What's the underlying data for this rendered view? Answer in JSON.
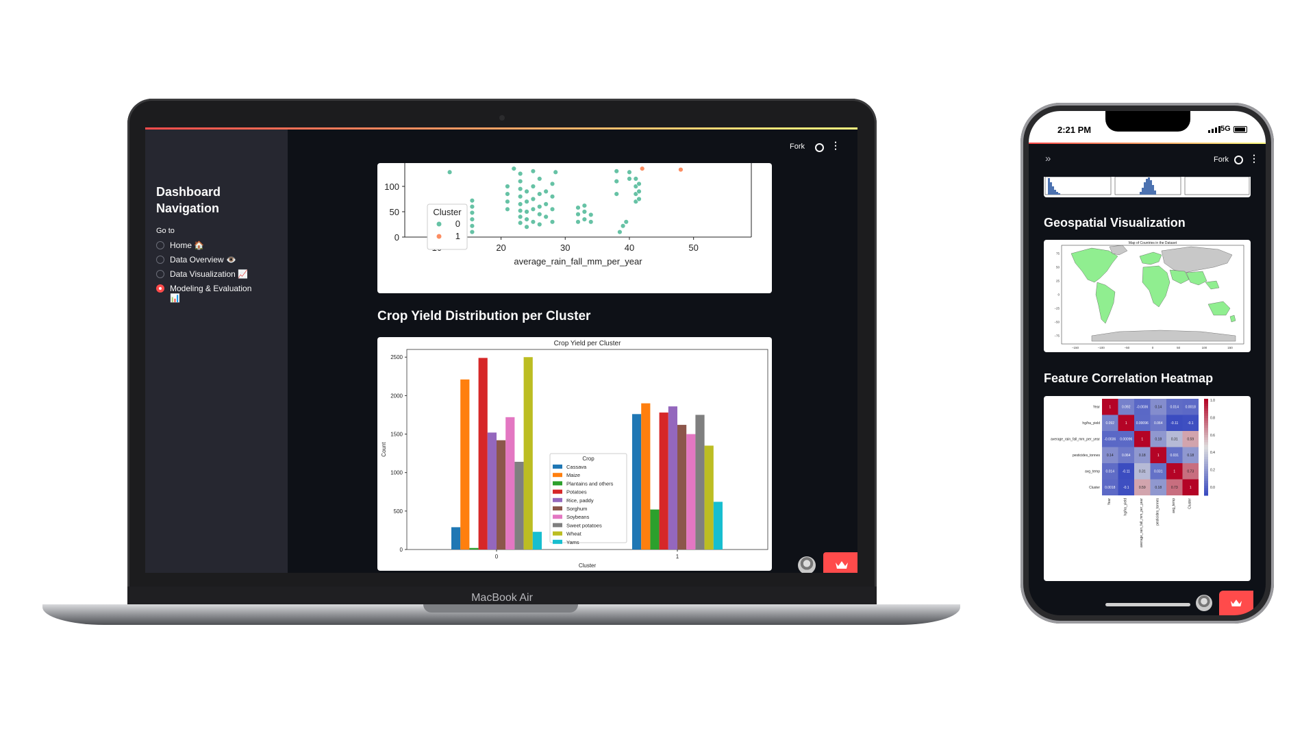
{
  "laptop": {
    "device_label": "MacBook Air",
    "header": {
      "fork_label": "Fork",
      "github_icon": "github-icon",
      "menu_icon": "kebab-menu-icon"
    },
    "sidebar": {
      "title": "Dashboard Navigation",
      "goto_label": "Go to",
      "items": [
        {
          "label": "Home 🏠",
          "selected": false
        },
        {
          "label": "Data Overview 👁️",
          "selected": false
        },
        {
          "label": "Data Visualization 📈",
          "selected": false
        },
        {
          "label": "Modeling & Evaluation 📊",
          "selected": true
        }
      ]
    },
    "sections": {
      "bar_section_title": "Crop Yield Distribution per Cluster"
    }
  },
  "phone": {
    "time": "2:21 PM",
    "signal": "5G",
    "header": {
      "expand_icon": "double-chevron-right-icon",
      "fork_label": "Fork"
    },
    "sections": {
      "geo_title": "Geospatial Visualization",
      "heatmap_title": "Feature Correlation Heatmap"
    },
    "map_title": "Map of Countries in the Dataset",
    "map_lon_ticks": [
      "−150",
      "−100",
      "−50",
      "0",
      "50",
      "100",
      "150"
    ],
    "map_lat_ticks": [
      "75",
      "50",
      "25",
      "0",
      "−25",
      "−50",
      "−75"
    ]
  },
  "colors": {
    "accent": "#ff4b4b",
    "bg_dark": "#0e1117",
    "sidebar": "#262730"
  },
  "chart_data": [
    {
      "type": "scatter",
      "xlabel": "average_rain_fall_mm_per_year",
      "ylabel": "",
      "x_ticks": [
        10,
        20,
        30,
        40,
        50
      ],
      "y_ticks": [
        0,
        50,
        100
      ],
      "xlim": [
        5,
        59
      ],
      "legend_title": "Cluster",
      "legend_position": "lower-left",
      "series": [
        {
          "name": "0",
          "color": "#66c2a5",
          "points": [
            [
              12,
              128
            ],
            [
              15.5,
              10
            ],
            [
              15.5,
              22
            ],
            [
              15.5,
              35
            ],
            [
              15.5,
              48
            ],
            [
              15.5,
              60
            ],
            [
              15.5,
              72
            ],
            [
              21,
              55
            ],
            [
              21,
              70
            ],
            [
              21,
              85
            ],
            [
              21,
              100
            ],
            [
              22,
              135
            ],
            [
              23,
              28
            ],
            [
              23,
              40
            ],
            [
              23,
              52
            ],
            [
              23,
              65
            ],
            [
              23,
              80
            ],
            [
              23,
              95
            ],
            [
              23,
              110
            ],
            [
              23,
              125
            ],
            [
              24,
              20
            ],
            [
              24,
              35
            ],
            [
              24,
              50
            ],
            [
              24,
              70
            ],
            [
              24,
              90
            ],
            [
              25,
              30
            ],
            [
              25,
              55
            ],
            [
              25,
              75
            ],
            [
              25,
              100
            ],
            [
              25,
              130
            ],
            [
              26,
              25
            ],
            [
              26,
              45
            ],
            [
              26,
              60
            ],
            [
              26,
              85
            ],
            [
              26,
              115
            ],
            [
              27,
              40
            ],
            [
              27,
              65
            ],
            [
              27,
              90
            ],
            [
              28,
              30
            ],
            [
              28,
              55
            ],
            [
              28,
              80
            ],
            [
              28,
              105
            ],
            [
              28.5,
              128
            ],
            [
              32,
              30
            ],
            [
              32,
              45
            ],
            [
              32,
              58
            ],
            [
              33,
              35
            ],
            [
              33,
              50
            ],
            [
              33,
              62
            ],
            [
              34,
              30
            ],
            [
              34,
              44
            ],
            [
              38,
              85
            ],
            [
              38,
              110
            ],
            [
              38,
              130
            ],
            [
              38.5,
              10
            ],
            [
              39,
              22
            ],
            [
              39.5,
              30
            ],
            [
              40,
              115
            ],
            [
              40,
              128
            ],
            [
              41,
              70
            ],
            [
              41,
              85
            ],
            [
              41,
              100
            ],
            [
              41,
              115
            ],
            [
              41.5,
              75
            ],
            [
              41.5,
              90
            ],
            [
              41.5,
              105
            ]
          ]
        },
        {
          "name": "1",
          "color": "#fc8d62",
          "points": [
            [
              42,
              135
            ],
            [
              48,
              133
            ]
          ]
        }
      ]
    },
    {
      "type": "bar",
      "title": "Crop Yield per Cluster",
      "xlabel": "Cluster",
      "ylabel": "Count",
      "ylim": [
        0,
        2600
      ],
      "y_ticks": [
        0,
        500,
        1000,
        1500,
        2000,
        2500
      ],
      "categories": [
        "0",
        "1"
      ],
      "legend_title": "Crop",
      "legend_position": "center",
      "series": [
        {
          "name": "Cassava",
          "color": "#1f77b4",
          "values": [
            290,
            1760
          ]
        },
        {
          "name": "Maize",
          "color": "#ff7f0e",
          "values": [
            2210,
            1900
          ]
        },
        {
          "name": "Plantains and others",
          "color": "#2ca02c",
          "values": [
            20,
            520
          ]
        },
        {
          "name": "Potatoes",
          "color": "#d62728",
          "values": [
            2490,
            1780
          ]
        },
        {
          "name": "Rice, paddy",
          "color": "#9467bd",
          "values": [
            1520,
            1860
          ]
        },
        {
          "name": "Sorghum",
          "color": "#8c564b",
          "values": [
            1420,
            1620
          ]
        },
        {
          "name": "Soybeans",
          "color": "#e377c2",
          "values": [
            1720,
            1500
          ]
        },
        {
          "name": "Sweet potatoes",
          "color": "#7f7f7f",
          "values": [
            1140,
            1750
          ]
        },
        {
          "name": "Wheat",
          "color": "#bcbd22",
          "values": [
            2500,
            1350
          ]
        },
        {
          "name": "Yams",
          "color": "#17becf",
          "values": [
            230,
            620
          ]
        }
      ]
    },
    {
      "type": "heatmap",
      "labels": [
        "Year",
        "hg/ha_yield",
        "average_rain_fall_mm_per_year",
        "pesticides_tonnes",
        "avg_temp",
        "Cluster"
      ],
      "values": [
        [
          1,
          0.092,
          -0.0036,
          0.14,
          0.014,
          0.0018
        ],
        [
          0.092,
          1,
          0.00096,
          0.064,
          -0.11,
          -0.1
        ],
        [
          -0.0036,
          0.00096,
          1,
          0.18,
          0.31,
          0.59
        ],
        [
          0.14,
          0.064,
          0.18,
          1,
          0.031,
          0.18
        ],
        [
          0.014,
          -0.11,
          0.31,
          0.031,
          1,
          0.73
        ],
        [
          0.0018,
          -0.1,
          0.59,
          0.18,
          0.73,
          1
        ]
      ],
      "cell_labels": [
        [
          "1",
          "0.092",
          "-0.0036",
          "0.14",
          "0.014",
          "0.0018"
        ],
        [
          "0.092",
          "1",
          "0.00096",
          "0.064",
          "-0.11",
          "-0.1"
        ],
        [
          "-0.0036",
          "0.00096",
          "1",
          "0.18",
          "0.31",
          "0.59"
        ],
        [
          "0.14",
          "0.064",
          "0.18",
          "1",
          "0.031",
          "0.18"
        ],
        [
          "0.014",
          "-0.11",
          "0.31",
          "0.031",
          "1",
          "0.73"
        ],
        [
          "0.0018",
          "-0.1",
          "0.59",
          "0.18",
          "0.73",
          "1"
        ]
      ],
      "colorbar_ticks": [
        "1.0",
        "0.8",
        "0.6",
        "0.4",
        "0.2",
        "0.0"
      ],
      "colormap": "coolwarm"
    }
  ]
}
